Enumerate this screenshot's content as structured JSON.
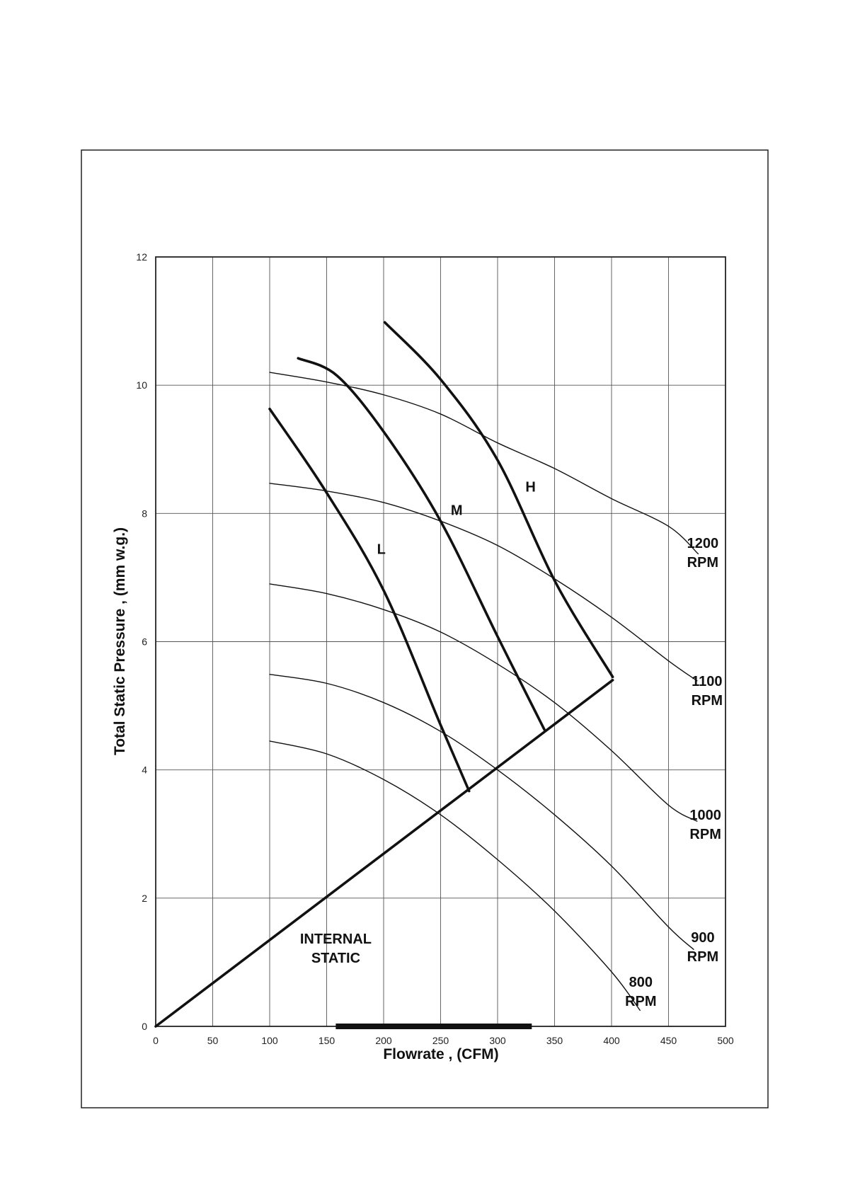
{
  "chart_data": {
    "type": "line",
    "x_label": "Flowrate , (CFM)",
    "y_label": "Total Static Pressure , (mm w.g.)",
    "xlim": [
      0,
      500
    ],
    "xticks": [
      0,
      50,
      100,
      150,
      200,
      250,
      300,
      350,
      400,
      450,
      500
    ],
    "ylim": [
      0,
      12
    ],
    "yticks": [
      0,
      2,
      4,
      6,
      8,
      10,
      12
    ],
    "grid": true,
    "color": "#111111",
    "series": [
      {
        "name": "1200 RPM",
        "line_weight": "light",
        "x": [
          100,
          150,
          200,
          250,
          300,
          350,
          400,
          450,
          476
        ],
        "values": [
          10.2,
          10.05,
          9.85,
          9.55,
          9.1,
          8.7,
          8.23,
          7.8,
          7.37
        ]
      },
      {
        "name": "1100 RPM",
        "line_weight": "light",
        "x": [
          100,
          150,
          200,
          250,
          300,
          350,
          400,
          450,
          475
        ],
        "values": [
          8.47,
          8.35,
          8.17,
          7.88,
          7.5,
          6.98,
          6.38,
          5.7,
          5.39
        ]
      },
      {
        "name": "1000 RPM",
        "line_weight": "light",
        "x": [
          100,
          150,
          200,
          250,
          300,
          350,
          400,
          450,
          475
        ],
        "values": [
          6.9,
          6.75,
          6.5,
          6.15,
          5.65,
          5.05,
          4.3,
          3.45,
          3.2
        ]
      },
      {
        "name": "900 RPM",
        "line_weight": "light",
        "x": [
          100,
          150,
          200,
          250,
          300,
          350,
          400,
          450,
          472
        ],
        "values": [
          5.49,
          5.35,
          5.05,
          4.6,
          4.0,
          3.3,
          2.5,
          1.55,
          1.2
        ]
      },
      {
        "name": "800 RPM",
        "line_weight": "light",
        "x": [
          100,
          150,
          200,
          250,
          300,
          350,
          400,
          425
        ],
        "values": [
          4.45,
          4.25,
          3.85,
          3.3,
          2.6,
          1.8,
          0.85,
          0.25
        ]
      },
      {
        "name": "L",
        "line_weight": "heavy",
        "x": [
          100,
          149,
          200,
          250,
          275
        ],
        "values": [
          9.63,
          8.35,
          6.8,
          4.7,
          3.67
        ]
      },
      {
        "name": "M",
        "line_weight": "heavy",
        "x": [
          125,
          159,
          201,
          250,
          300,
          341
        ],
        "values": [
          10.42,
          10.15,
          9.25,
          7.88,
          6.08,
          4.63
        ]
      },
      {
        "name": "H",
        "line_weight": "heavy",
        "x": [
          201,
          250,
          300,
          351,
          401
        ],
        "values": [
          10.98,
          10.09,
          8.83,
          6.92,
          5.45
        ]
      },
      {
        "name": "INTERNAL STATIC",
        "line_weight": "heavy",
        "x": [
          0,
          401
        ],
        "values": [
          0,
          5.4
        ]
      },
      {
        "line_weight": "bar",
        "x": [
          158,
          330
        ],
        "values": [
          0,
          0
        ]
      }
    ]
  }
}
